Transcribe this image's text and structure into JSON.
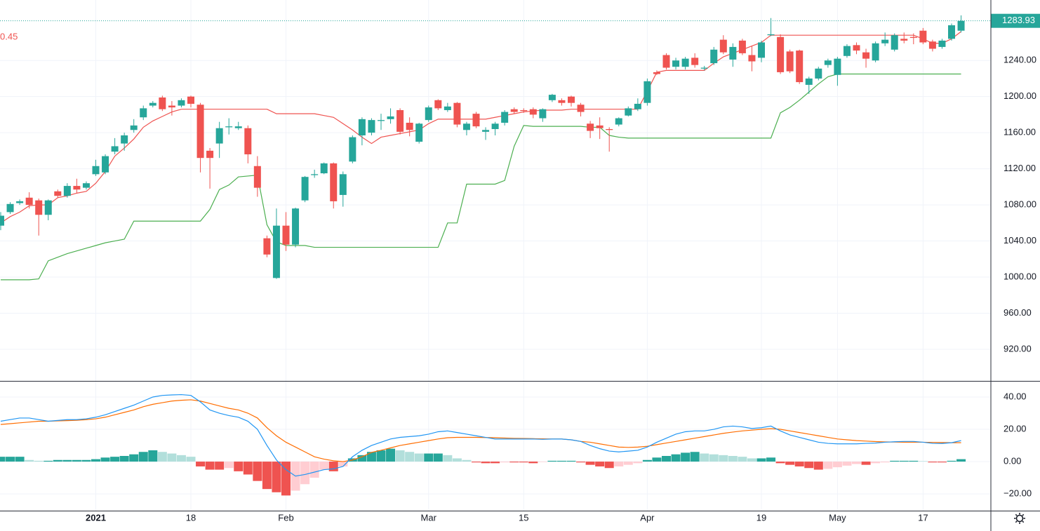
{
  "chart_data": [
    {
      "type": "candlestick",
      "annotation": "0.45",
      "annotation_color": "#ef5350",
      "categories": [
        null,
        null,
        null,
        null,
        null,
        null,
        null,
        null,
        null,
        null,
        "2021",
        null,
        null,
        null,
        null,
        null,
        null,
        null,
        null,
        null,
        "18",
        null,
        null,
        null,
        null,
        null,
        null,
        null,
        null,
        null,
        "Feb",
        null,
        null,
        null,
        null,
        null,
        null,
        null,
        null,
        null,
        null,
        null,
        null,
        null,
        null,
        "Mar",
        null,
        null,
        null,
        null,
        null,
        null,
        null,
        null,
        null,
        "15",
        null,
        null,
        null,
        null,
        null,
        null,
        null,
        null,
        null,
        null,
        null,
        null,
        "Apr",
        null,
        null,
        null,
        null,
        null,
        null,
        null,
        null,
        null,
        null,
        null,
        "19",
        null,
        null,
        null,
        null,
        null,
        null,
        null,
        "May",
        null,
        null,
        null,
        null,
        null,
        null,
        null,
        null,
        "17",
        null,
        null,
        null,
        null
      ],
      "open": [
        1057,
        1072,
        1082,
        1088,
        1085,
        1069,
        1095,
        1090,
        1101,
        1099,
        1114,
        1116,
        1139,
        1148,
        1163,
        1177,
        1190,
        1199,
        1190,
        1190,
        1200,
        1191,
        1140,
        1148,
        1166,
        1165,
        1165,
        1123,
        1043,
        999,
        1057,
        1036,
        1085,
        1113,
        1115,
        1126,
        1091,
        1128,
        1157,
        1160,
        1173,
        1175,
        1185,
        1171,
        1150,
        1174,
        1196,
        1185,
        1193,
        1163,
        1181,
        1161,
        1164,
        1171,
        1186,
        1185,
        1186,
        1176,
        1196,
        1196,
        1200,
        1191,
        1170,
        1168,
        1164,
        1169,
        1179,
        1186,
        1193,
        1227,
        1246,
        1233,
        1233,
        1243,
        1231,
        1237,
        1263,
        1241,
        1262,
        1246,
        1243,
        1268,
        1266,
        1250,
        1251,
        1213,
        1220,
        1235,
        1224,
        1245,
        1257,
        1249,
        1240,
        1259,
        1252,
        1264,
        1266,
        1273,
        1261,
        1255,
        1264,
        1273
      ],
      "high": [
        1072,
        1083,
        1086,
        1094,
        1087,
        1086,
        1097,
        1104,
        1109,
        1106,
        1130,
        1136,
        1154,
        1160,
        1175,
        1190,
        1195,
        1201,
        1195,
        1198,
        1201,
        1193,
        1143,
        1172,
        1176,
        1172,
        1168,
        1134,
        1046,
        1076,
        1072,
        1077,
        1112,
        1119,
        1127,
        1127,
        1117,
        1157,
        1177,
        1176,
        1181,
        1187,
        1187,
        1177,
        1171,
        1190,
        1197,
        1193,
        1194,
        1172,
        1183,
        1166,
        1172,
        1185,
        1188,
        1187,
        1188,
        1187,
        1203,
        1198,
        1201,
        1193,
        1173,
        1177,
        1166,
        1177,
        1189,
        1198,
        1220,
        1229,
        1248,
        1243,
        1244,
        1248,
        1234,
        1255,
        1268,
        1259,
        1264,
        1256,
        1262,
        1287,
        1269,
        1252,
        1252,
        1222,
        1233,
        1242,
        1244,
        1258,
        1260,
        1253,
        1261,
        1271,
        1270,
        1271,
        1270,
        1276,
        1263,
        1264,
        1281,
        1290
      ],
      "low": [
        1052,
        1070,
        1080,
        1076,
        1046,
        1063,
        1088,
        1088,
        1093,
        1097,
        1112,
        1114,
        1136,
        1140,
        1160,
        1174,
        1188,
        1184,
        1179,
        1188,
        1188,
        1116,
        1098,
        1132,
        1158,
        1163,
        1126,
        1089,
        1022,
        998,
        1029,
        1033,
        1083,
        1110,
        1114,
        1076,
        1078,
        1126,
        1146,
        1157,
        1163,
        1170,
        1158,
        1156,
        1148,
        1172,
        1185,
        1183,
        1166,
        1157,
        1165,
        1152,
        1157,
        1168,
        1181,
        1182,
        1176,
        1172,
        1194,
        1190,
        1189,
        1178,
        1154,
        1153,
        1139,
        1167,
        1178,
        1184,
        1190,
        1224,
        1230,
        1230,
        1230,
        1232,
        1229,
        1235,
        1247,
        1233,
        1246,
        1228,
        1238,
        1267,
        1225,
        1226,
        1214,
        1203,
        1218,
        1232,
        1212,
        1243,
        1247,
        1232,
        1238,
        1256,
        1250,
        1259,
        1258,
        1258,
        1250,
        1253,
        1262,
        1271
      ],
      "close": [
        1068,
        1081,
        1084,
        1080,
        1069,
        1085,
        1090,
        1101,
        1097,
        1104,
        1123,
        1134,
        1145,
        1157,
        1168,
        1187,
        1193,
        1186,
        1188,
        1196,
        1192,
        1132,
        1132,
        1165,
        1167,
        1167,
        1136,
        1099,
        1025,
        1057,
        1036,
        1076,
        1111,
        1114,
        1126,
        1084,
        1114,
        1155,
        1175,
        1174,
        1174,
        1178,
        1161,
        1163,
        1170,
        1188,
        1187,
        1189,
        1169,
        1170,
        1167,
        1163,
        1170,
        1183,
        1183,
        1184,
        1180,
        1186,
        1202,
        1193,
        1193,
        1183,
        1162,
        1165,
        1163,
        1176,
        1187,
        1192,
        1217,
        1225,
        1232,
        1240,
        1242,
        1235,
        1232,
        1252,
        1249,
        1255,
        1248,
        1239,
        1260,
        1269,
        1227,
        1228,
        1216,
        1220,
        1231,
        1240,
        1242,
        1256,
        1251,
        1242,
        1259,
        1263,
        1268,
        1262,
        1265,
        1260,
        1253,
        1262,
        1279,
        1283.93
      ],
      "up_color": "#26a69a",
      "down_color": "#ef5350",
      "lines": [
        {
          "color": "#ef5350",
          "values": [
            1060,
            1067,
            1072,
            1079,
            1080,
            1080,
            1088,
            1090,
            1093,
            1095,
            1104,
            1117,
            1134,
            1143,
            1153,
            1166,
            1173,
            1178,
            1183,
            1186,
            1186,
            1186,
            1186,
            1186,
            1186,
            1186,
            1186,
            1186,
            1186,
            1181,
            1181,
            1181,
            1181,
            1181,
            1179,
            1177,
            1170,
            1163,
            1155,
            1148,
            1155,
            1157,
            1159,
            1161,
            1163,
            1170,
            1175,
            1175,
            1175,
            1175,
            1175,
            1175,
            1177,
            1179,
            1181,
            1183,
            1184,
            1185,
            1185,
            1185,
            1186,
            1186,
            1186,
            1186,
            1186,
            1186,
            1186,
            1186,
            1206,
            1227,
            1229,
            1229,
            1229,
            1229,
            1229,
            1237,
            1244,
            1248,
            1252,
            1256,
            1260,
            1268,
            1268,
            1268,
            1268,
            1268,
            1268,
            1268,
            1268,
            1268,
            1268,
            1268,
            1268,
            1268,
            1268,
            1268,
            1268,
            1264,
            1259,
            1259,
            1264,
            1272
          ]
        },
        {
          "color": "#4caf50",
          "values": [
            997,
            997,
            997,
            997,
            998,
            1018,
            1022,
            1026,
            1029,
            1032,
            1035,
            1038,
            1040,
            1042,
            1062,
            1062,
            1062,
            1062,
            1062,
            1062,
            1062,
            1062,
            1075,
            1097,
            1102,
            1111,
            1112,
            1113,
            1058,
            1039,
            1035,
            1035,
            1035,
            1033,
            1033,
            1033,
            1033,
            1033,
            1033,
            1033,
            1033,
            1033,
            1033,
            1033,
            1033,
            1033,
            1033,
            1060,
            1060,
            1103,
            1103,
            1103,
            1103,
            1107,
            1145,
            1168,
            1167,
            1167,
            1167,
            1167,
            1167,
            1167,
            1166,
            1166,
            1157,
            1155,
            1154,
            1154,
            1154,
            1154,
            1154,
            1154,
            1154,
            1154,
            1154,
            1154,
            1154,
            1154,
            1154,
            1154,
            1154,
            1154,
            1182,
            1188,
            1196,
            1205,
            1214,
            1222,
            1225,
            1225,
            1225,
            1225,
            1225,
            1225,
            1225,
            1225,
            1225,
            1225,
            1225,
            1225,
            1225,
            1225
          ]
        }
      ],
      "ylim": [
        885,
        1307
      ],
      "yticks": [
        {
          "value": 920,
          "label": "920.00"
        },
        {
          "value": 960,
          "label": "960.00"
        },
        {
          "value": 1000,
          "label": "1000.00"
        },
        {
          "value": 1040,
          "label": "1040.00"
        },
        {
          "value": 1080,
          "label": "1080.00"
        },
        {
          "value": 1120,
          "label": "1120.00"
        },
        {
          "value": 1160,
          "label": "1160.00"
        },
        {
          "value": 1200,
          "label": "1200.00"
        },
        {
          "value": 1240,
          "label": "1240.00"
        }
      ],
      "grid": true
    },
    {
      "type": "macd",
      "macd": {
        "color": "#2196f3",
        "values": [
          25,
          26,
          27,
          27,
          26,
          25,
          25.5,
          26,
          26,
          26.5,
          27.5,
          29,
          31,
          33,
          35,
          37.5,
          40,
          41,
          41.3,
          41.5,
          41,
          37,
          32,
          30,
          28.5,
          27.5,
          25,
          20,
          10,
          1,
          -5,
          -9,
          -8,
          -6.5,
          -5,
          -4.5,
          -3,
          3,
          7,
          10,
          12,
          14,
          15,
          15.5,
          16,
          17,
          18.5,
          19,
          18,
          17,
          16,
          15,
          14,
          14,
          14,
          14,
          14,
          13.8,
          14,
          14,
          13.5,
          12.5,
          10,
          8,
          6.5,
          6,
          6.5,
          7,
          9,
          12,
          14.5,
          17,
          18.5,
          19,
          19,
          20,
          21.5,
          22,
          21.5,
          20.5,
          21,
          22,
          19,
          16.5,
          15,
          13.5,
          12,
          11.3,
          11,
          11,
          11,
          11.3,
          11.5,
          12,
          12.3,
          12.5,
          12.5,
          12,
          11.3,
          11.2,
          11.7,
          13
        ]
      },
      "signal": {
        "color": "#ff6d00",
        "values": [
          23,
          23.5,
          24,
          24.5,
          25,
          25,
          25.2,
          25.4,
          25.6,
          26,
          26.5,
          27.5,
          29,
          30.5,
          32,
          34,
          35.5,
          36.5,
          37.5,
          38,
          38.3,
          37.5,
          36,
          34.5,
          33,
          32,
          30,
          27,
          21,
          16,
          12,
          9,
          6,
          3,
          1.5,
          0.5,
          0,
          1,
          3,
          5.7,
          7,
          8.5,
          10,
          11,
          12,
          13,
          14,
          14.8,
          15,
          15,
          15,
          14.9,
          14.8,
          14.6,
          14.4,
          14.3,
          14.2,
          14.1,
          14,
          14,
          13.5,
          12.5,
          12,
          11,
          10,
          9,
          8.8,
          9,
          9.5,
          10.5,
          11.5,
          12.5,
          13.5,
          14.5,
          15.5,
          16.5,
          17.5,
          18.3,
          19,
          19.5,
          20,
          20.4,
          20,
          19,
          18,
          17,
          16,
          15,
          14,
          13.5,
          13,
          12.7,
          12.4,
          12.2,
          12.1,
          12,
          12,
          12,
          11.9,
          11.8,
          11.7,
          11.7
        ]
      },
      "histogram": {
        "values": [
          3,
          3,
          3,
          1,
          0.5,
          0.5,
          1,
          1,
          1,
          1,
          1.5,
          2.5,
          3,
          3.5,
          4.5,
          6,
          7,
          6,
          5,
          4,
          3,
          -3,
          -5,
          -5,
          -4,
          -6,
          -8,
          -12,
          -17,
          -19,
          -21,
          -18,
          -14,
          -10,
          -5,
          -6,
          -3,
          2,
          4,
          6,
          7,
          8,
          7,
          6,
          5,
          5,
          5,
          4,
          2,
          1,
          -0.5,
          -1,
          -1,
          -0.5,
          -0.5,
          -0.5,
          -1,
          -0.3,
          0.5,
          0.5,
          0.5,
          -0.5,
          -2,
          -3,
          -4,
          -3,
          -2,
          -1,
          1,
          2.5,
          3.5,
          4.5,
          5.5,
          6,
          5,
          4.5,
          4,
          3.5,
          3,
          2,
          2,
          2.5,
          -1,
          -2,
          -3,
          -4,
          -5,
          -4.5,
          -3.5,
          -2.5,
          -1.5,
          -2,
          -1,
          -0.5,
          0.5,
          0.5,
          0.5,
          0.3,
          -0.5,
          -0.5,
          0.5,
          1.5
        ],
        "colors": {
          "pos_rising": "#26a69a",
          "pos_falling": "#b2dfdb",
          "neg_falling": "#ef5350",
          "neg_rising": "#ffcdd2"
        }
      },
      "ylim": [
        -30.4,
        50
      ],
      "yticks": [
        {
          "value": -20,
          "label": "−20.00"
        },
        {
          "value": 0,
          "label": "0.00"
        },
        {
          "value": 20,
          "label": "20.00"
        },
        {
          "value": 40,
          "label": "40.00"
        }
      ],
      "grid": true
    }
  ]
}
